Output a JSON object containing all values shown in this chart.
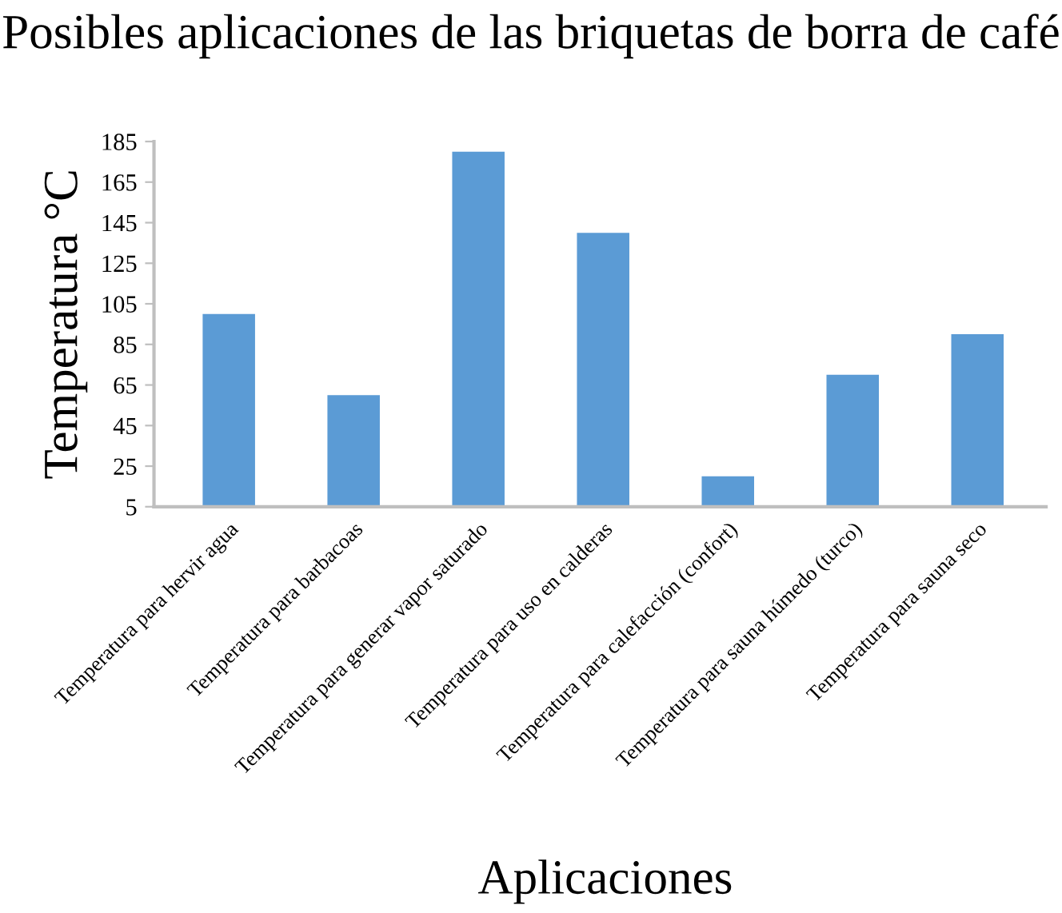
{
  "chart_data": {
    "type": "bar",
    "title": "Posibles aplicaciones de las briquetas de borra de café",
    "xlabel": "Aplicaciones",
    "ylabel": "Temperatura °C",
    "categories": [
      "Temperatura para hervir agua",
      "Temperatura para barbacoas",
      "Temperatura para generar vapor saturado",
      "Temperatura para uso en calderas",
      "Temperatura para calefacción (confort)",
      "Temperatura para sauna húmedo (turco)",
      "Temperatura para sauna seco"
    ],
    "values": [
      100,
      60,
      180,
      140,
      20,
      70,
      90
    ],
    "color": "#5b9bd5",
    "ylim": [
      5,
      185
    ],
    "yticks": [
      5,
      25,
      45,
      65,
      85,
      105,
      125,
      145,
      165,
      185
    ],
    "grid": false,
    "legend": false
  }
}
